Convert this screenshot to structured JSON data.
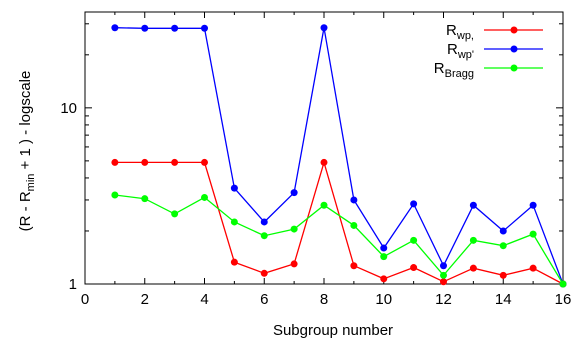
{
  "chart_data": {
    "type": "line",
    "title": "",
    "xlabel": "Subgroup number",
    "ylabel": {
      "main": "(R - R",
      "sub": "min",
      "rest": " + 1 ) - logscale"
    },
    "x": [
      1,
      2,
      3,
      4,
      5,
      6,
      7,
      8,
      9,
      10,
      11,
      12,
      13,
      14,
      15,
      16
    ],
    "xlim": [
      0,
      16
    ],
    "xticks": [
      "0",
      "2",
      "4",
      "6",
      "8",
      "10",
      "12",
      "14",
      "16"
    ],
    "ylim": [
      1,
      35
    ],
    "yscale": "log",
    "yticks": [
      "1",
      "10"
    ],
    "grid": false,
    "legend_position": "top-right",
    "series": [
      {
        "name": "R",
        "name_sub": "wp,",
        "color": "#ff0000",
        "values": [
          4.9,
          4.9,
          4.9,
          4.9,
          1.33,
          1.15,
          1.3,
          4.9,
          1.27,
          1.07,
          1.24,
          1.03,
          1.23,
          1.12,
          1.23,
          1.0
        ]
      },
      {
        "name": "R",
        "name_sub": "wp'",
        "color": "#0000ff",
        "values": [
          28.5,
          28.3,
          28.3,
          28.3,
          3.5,
          2.25,
          3.3,
          28.5,
          3.0,
          1.6,
          2.85,
          1.27,
          2.8,
          2.0,
          2.8,
          1.0
        ]
      },
      {
        "name": "R",
        "name_sub": "Bragg",
        "color": "#00ff00",
        "values": [
          3.2,
          3.05,
          2.5,
          3.1,
          2.25,
          1.88,
          2.05,
          2.8,
          2.15,
          1.43,
          1.77,
          1.12,
          1.77,
          1.65,
          1.92,
          1.0
        ]
      }
    ]
  }
}
